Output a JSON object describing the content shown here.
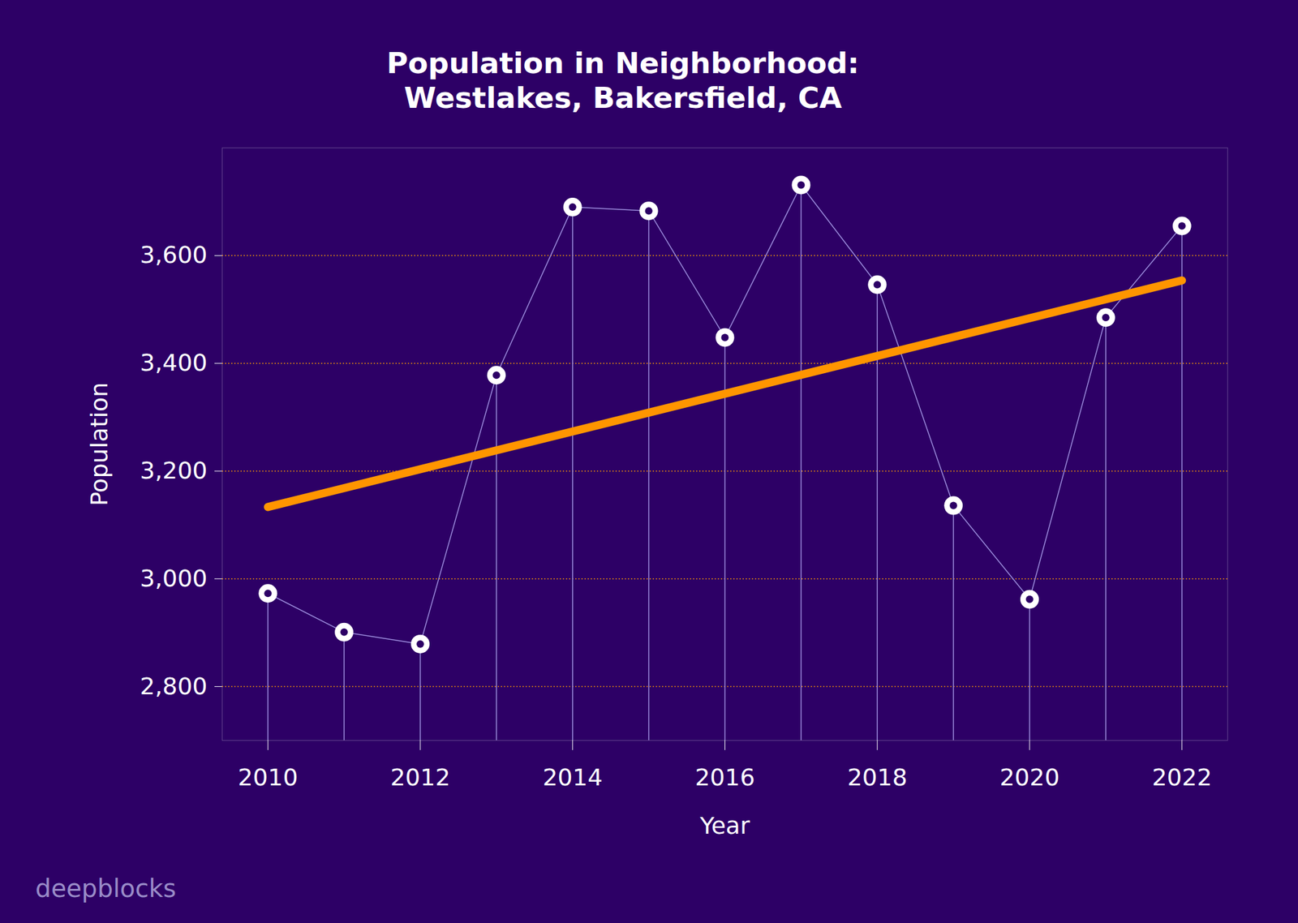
{
  "chart_data": {
    "type": "line",
    "title": "Population in Neighborhood:\nWestlakes, Bakersfield, CA",
    "x_label": "Year",
    "y_label": "Population",
    "x": [
      2010,
      2011,
      2012,
      2013,
      2014,
      2015,
      2016,
      2017,
      2018,
      2019,
      2020,
      2021,
      2022
    ],
    "series": [
      {
        "values": [
          2973,
          2901,
          2879,
          3378,
          3690,
          3683,
          3448,
          3731,
          3546,
          3136,
          2962,
          3485,
          3655
        ],
        "color": "#9f8fe0",
        "marker": "circle",
        "line_style": "solid"
      },
      {
        "type": "regression",
        "color": "#ff9500"
      }
    ],
    "xlim": [
      2009.4,
      2022.6
    ],
    "xticks": [
      2010,
      2012,
      2014,
      2016,
      2018,
      2020,
      2022
    ],
    "ylim": [
      2700,
      3800
    ],
    "yticks": [
      {
        "value": 2800,
        "label": "2,800"
      },
      {
        "value": 3000,
        "label": "3,000"
      },
      {
        "value": 3200,
        "label": "3,200"
      },
      {
        "value": 3400,
        "label": "3,400"
      },
      {
        "value": 3600,
        "label": "3,600"
      }
    ],
    "grid": true,
    "annotations": [
      {
        "text": "deepblocks"
      }
    ]
  }
}
